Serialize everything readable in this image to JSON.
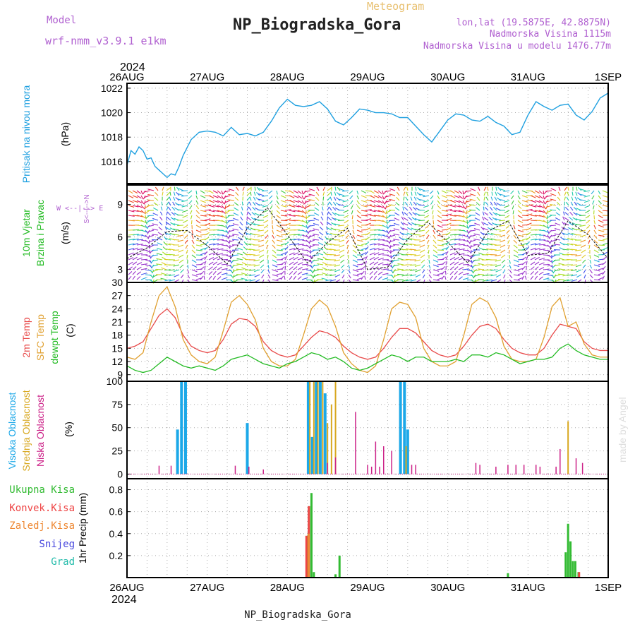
{
  "header": {
    "model_label": "Model",
    "model_name": "wrf-nmm_v3.9.1 e1km",
    "meteogram_label": "Meteogram",
    "station_title": "NP_Biogradska_Gora",
    "coords": "lon,lat (19.5875E, 42.8875N)",
    "elevation": "Nadmorska Visina 1115m",
    "model_elevation": "Nadmorska Visina u modelu 1476.77m",
    "watermark": "made by Angel",
    "footer_station": "NP_Biogradska_Gora",
    "year": "2024"
  },
  "colors": {
    "pressure": "#1fa0e0",
    "t2m": "#e84a4a",
    "sfc": "#e0a030",
    "dew": "#22bb22",
    "cloud_high": "#1ca8e8",
    "cloud_mid": "#d8a820",
    "cloud_low": "#cc2288",
    "precip_total": "#33bb33",
    "precip_conv": "#ee4444",
    "precip_frz": "#ee8833",
    "precip_snow": "#4444dd",
    "precip_grad": "#22bbaa",
    "model_text": "#b060d0"
  },
  "x_axis": {
    "ticks": [
      "26AUG",
      "27AUG",
      "28AUG",
      "29AUG",
      "30AUG",
      "31AUG",
      "1SEP"
    ]
  },
  "panel_labels": {
    "pressure": [
      "Pritisak na nivou mora"
    ],
    "pressure_unit": "(hPa)",
    "wind": [
      "10m Vjetar",
      "Brzina i Pravac"
    ],
    "wind_unit": "(m/s)",
    "compass": "W <--|--> E",
    "compass_vert": "S<--|-->N",
    "temp": [
      "2m Temp",
      "SFC Temp",
      "dewpt Temp"
    ],
    "temp_unit": "(C)",
    "cloud": [
      "Visoka Oblacnost",
      "Srednja Oblacnost",
      "Niska Oblacnost"
    ],
    "cloud_unit": "(%)",
    "precip_legend": [
      "Ukupna Kisa",
      "Konvek.Kisa",
      "Zaledj.Kisa",
      "Snijeg",
      "Grad"
    ],
    "precip_unit": "1hr Precip (mm)"
  },
  "chart_data": [
    {
      "type": "line",
      "name": "pressure",
      "ylabel": "(hPa)",
      "ylim": [
        1014.2,
        1022.4
      ],
      "yticks": [
        1016,
        1018,
        1020,
        1022
      ],
      "x_days": [
        0,
        0.05,
        0.1,
        0.15,
        0.2,
        0.25,
        0.3,
        0.35,
        0.4,
        0.45,
        0.5,
        0.55,
        0.6,
        0.65,
        0.7,
        0.8,
        0.9,
        1.0,
        1.1,
        1.2,
        1.3,
        1.4,
        1.5,
        1.6,
        1.7,
        1.8,
        1.9,
        2.0,
        2.1,
        2.2,
        2.3,
        2.4,
        2.5,
        2.6,
        2.7,
        2.8,
        2.9,
        3.0,
        3.1,
        3.2,
        3.3,
        3.4,
        3.5,
        3.6,
        3.7,
        3.8,
        3.9,
        4.0,
        4.1,
        4.2,
        4.3,
        4.4,
        4.5,
        4.6,
        4.7,
        4.8,
        4.9,
        5.0,
        5.1,
        5.2,
        5.3,
        5.4,
        5.5,
        5.6,
        5.7,
        5.8,
        5.9,
        6.0
      ],
      "values": [
        1015.7,
        1016.9,
        1016.6,
        1017.2,
        1016.9,
        1016.2,
        1016.3,
        1015.6,
        1015.3,
        1015.0,
        1014.7,
        1015.0,
        1014.9,
        1015.6,
        1016.5,
        1017.8,
        1018.4,
        1018.5,
        1018.4,
        1018.1,
        1018.8,
        1018.2,
        1018.3,
        1018.1,
        1018.4,
        1019.3,
        1020.4,
        1021.1,
        1020.6,
        1020.5,
        1020.6,
        1020.9,
        1020.3,
        1019.3,
        1019.0,
        1019.6,
        1020.3,
        1020.2,
        1020.0,
        1020.0,
        1019.9,
        1019.6,
        1019.6,
        1018.9,
        1018.2,
        1017.6,
        1018.5,
        1019.4,
        1019.9,
        1019.8,
        1019.4,
        1019.3,
        1019.7,
        1019.2,
        1018.9,
        1018.2,
        1018.4,
        1019.8,
        1020.9,
        1020.5,
        1020.2,
        1020.6,
        1020.7,
        1019.8,
        1019.4,
        1020.1,
        1021.2,
        1021.6
      ]
    },
    {
      "type": "line",
      "name": "wind",
      "ylabel": "(m/s)",
      "ylim": [
        1.8,
        10.8
      ],
      "yticks": [
        3,
        6,
        9
      ],
      "x_days": [
        0,
        0.25,
        0.5,
        0.75,
        1.0,
        1.25,
        1.5,
        1.75,
        2.0,
        2.25,
        2.5,
        2.75,
        3.0,
        3.25,
        3.5,
        3.75,
        4.0,
        4.25,
        4.5,
        4.75,
        5.0,
        5.25,
        5.5,
        5.75,
        6.0
      ],
      "values": [
        4.0,
        5.0,
        6.5,
        6.6,
        5.2,
        3.5,
        6.8,
        8.7,
        6.2,
        3.6,
        5.5,
        6.8,
        3.0,
        3.2,
        5.8,
        7.4,
        5.5,
        3.6,
        6.5,
        7.5,
        4.3,
        4.5,
        7.5,
        6.2,
        4.0
      ]
    },
    {
      "type": "line",
      "name": "temperature",
      "ylabel": "(C)",
      "ylim": [
        7.5,
        30
      ],
      "yticks": [
        9,
        12,
        15,
        18,
        21,
        24,
        27,
        30
      ],
      "x_days": [
        0,
        0.1,
        0.2,
        0.3,
        0.4,
        0.5,
        0.6,
        0.7,
        0.8,
        0.9,
        1.0,
        1.1,
        1.2,
        1.3,
        1.4,
        1.5,
        1.6,
        1.7,
        1.8,
        1.9,
        2.0,
        2.1,
        2.2,
        2.3,
        2.4,
        2.5,
        2.6,
        2.7,
        2.8,
        2.9,
        3.0,
        3.1,
        3.2,
        3.3,
        3.4,
        3.5,
        3.6,
        3.7,
        3.8,
        3.9,
        4.0,
        4.1,
        4.2,
        4.3,
        4.4,
        4.5,
        4.6,
        4.7,
        4.8,
        4.9,
        5.0,
        5.1,
        5.2,
        5.3,
        5.4,
        5.5,
        5.6,
        5.7,
        5.8,
        5.9,
        6.0
      ],
      "series": [
        {
          "name": "2m Temp",
          "values": [
            15.0,
            15.5,
            16.5,
            19.5,
            22.5,
            24.0,
            22.0,
            18.0,
            15.5,
            14.5,
            14.0,
            14.5,
            17.0,
            20.5,
            21.8,
            21.5,
            20.0,
            16.5,
            14.5,
            13.5,
            13.0,
            13.5,
            15.5,
            17.5,
            19.0,
            18.5,
            17.5,
            15.5,
            14.0,
            13.0,
            12.5,
            13.0,
            15.0,
            17.5,
            19.5,
            19.5,
            18.5,
            16.5,
            14.5,
            13.5,
            13.0,
            13.5,
            15.5,
            18.0,
            20.0,
            20.5,
            19.5,
            17.0,
            15.0,
            14.0,
            13.5,
            13.5,
            15.0,
            18.0,
            20.5,
            20.0,
            19.5,
            16.5,
            15.0,
            14.5,
            14.5
          ]
        },
        {
          "name": "SFC Temp",
          "values": [
            13.0,
            12.5,
            14.0,
            21.0,
            27.0,
            29.0,
            24.5,
            17.0,
            13.5,
            12.0,
            11.5,
            13.0,
            19.0,
            25.5,
            27.0,
            25.0,
            21.5,
            15.0,
            12.0,
            11.0,
            11.0,
            12.5,
            18.0,
            24.0,
            26.0,
            24.5,
            20.0,
            14.0,
            11.5,
            10.0,
            9.5,
            11.0,
            17.0,
            24.0,
            25.5,
            25.0,
            22.0,
            15.0,
            12.0,
            11.0,
            11.0,
            12.0,
            18.0,
            25.0,
            26.5,
            25.5,
            22.0,
            15.5,
            12.5,
            12.0,
            12.0,
            12.5,
            17.5,
            24.5,
            26.5,
            20.0,
            21.0,
            16.0,
            13.5,
            13.0,
            13.0
          ]
        },
        {
          "name": "dewpt Temp",
          "values": [
            11.0,
            10.0,
            9.5,
            10.0,
            11.5,
            13.0,
            12.0,
            11.0,
            10.5,
            11.0,
            10.5,
            10.0,
            11.0,
            12.5,
            13.0,
            13.5,
            12.5,
            11.5,
            11.0,
            10.5,
            11.5,
            12.0,
            13.0,
            14.0,
            13.5,
            12.5,
            13.0,
            12.0,
            10.5,
            10.0,
            10.5,
            11.5,
            12.5,
            13.5,
            13.0,
            12.0,
            13.0,
            13.0,
            12.0,
            12.0,
            12.0,
            12.5,
            12.0,
            13.5,
            13.5,
            13.0,
            14.0,
            13.5,
            12.5,
            11.5,
            12.0,
            12.5,
            12.5,
            13.0,
            15.0,
            16.0,
            14.5,
            13.5,
            13.0,
            12.5,
            12.5
          ]
        }
      ]
    },
    {
      "type": "bar",
      "name": "cloud",
      "ylabel": "(%)",
      "ylim": [
        -5,
        100
      ],
      "yticks": [
        0,
        25,
        50,
        75,
        100
      ],
      "series": [
        {
          "name": "Visoka Oblacnost",
          "x_days": [
            0.63,
            0.68,
            0.73,
            1.5,
            2.26,
            2.31,
            2.36,
            2.41,
            2.47,
            3.41,
            3.46,
            3.5
          ],
          "values": [
            48,
            100,
            100,
            55,
            100,
            40,
            100,
            100,
            87,
            100,
            100,
            48
          ]
        },
        {
          "name": "Srednja Oblacnost",
          "x_days": [
            2.28,
            2.33,
            2.38,
            2.44,
            2.5,
            2.55,
            2.6,
            3.48,
            5.5
          ],
          "values": [
            100,
            100,
            100,
            100,
            55,
            75,
            100,
            30,
            57
          ]
        },
        {
          "name": "Niska Oblacnost",
          "x_days": [
            0.4,
            0.55,
            1.35,
            1.52,
            1.7,
            2.5,
            2.6,
            2.85,
            3.0,
            3.05,
            3.1,
            3.15,
            3.2,
            3.3,
            3.55,
            3.6,
            4.35,
            4.4,
            4.6,
            4.75,
            4.85,
            4.95,
            5.1,
            5.15,
            5.35,
            5.4,
            5.6,
            5.68
          ],
          "values": [
            9,
            9,
            9,
            8,
            5,
            12,
            18,
            67,
            10,
            8,
            35,
            8,
            30,
            25,
            10,
            10,
            12,
            10,
            8,
            10,
            10,
            10,
            10,
            8,
            8,
            27,
            17,
            12
          ]
        }
      ]
    },
    {
      "type": "bar",
      "name": "precipitation",
      "ylabel": "1hr Precip (mm)",
      "ylim": [
        0,
        0.9
      ],
      "yticks": [
        0.2,
        0.4,
        0.6,
        0.8
      ],
      "series": [
        {
          "name": "Ukupna Kisa",
          "x_days": [
            2.24,
            2.27,
            2.3,
            2.33,
            2.6,
            2.65,
            4.75,
            5.47,
            5.5,
            5.53,
            5.56,
            5.59,
            5.63
          ],
          "values": [
            0.38,
            0.65,
            0.77,
            0.05,
            0.03,
            0.2,
            0.04,
            0.23,
            0.49,
            0.33,
            0.15,
            0.15,
            0.05
          ]
        },
        {
          "name": "Konvek.Kisa",
          "x_days": [
            2.23,
            2.26,
            5.63
          ],
          "values": [
            0.38,
            0.65,
            0.05
          ]
        },
        {
          "name": "Zaledj.Kisa",
          "x_days": [
            2.25
          ],
          "values": [
            0.4
          ]
        }
      ]
    }
  ]
}
